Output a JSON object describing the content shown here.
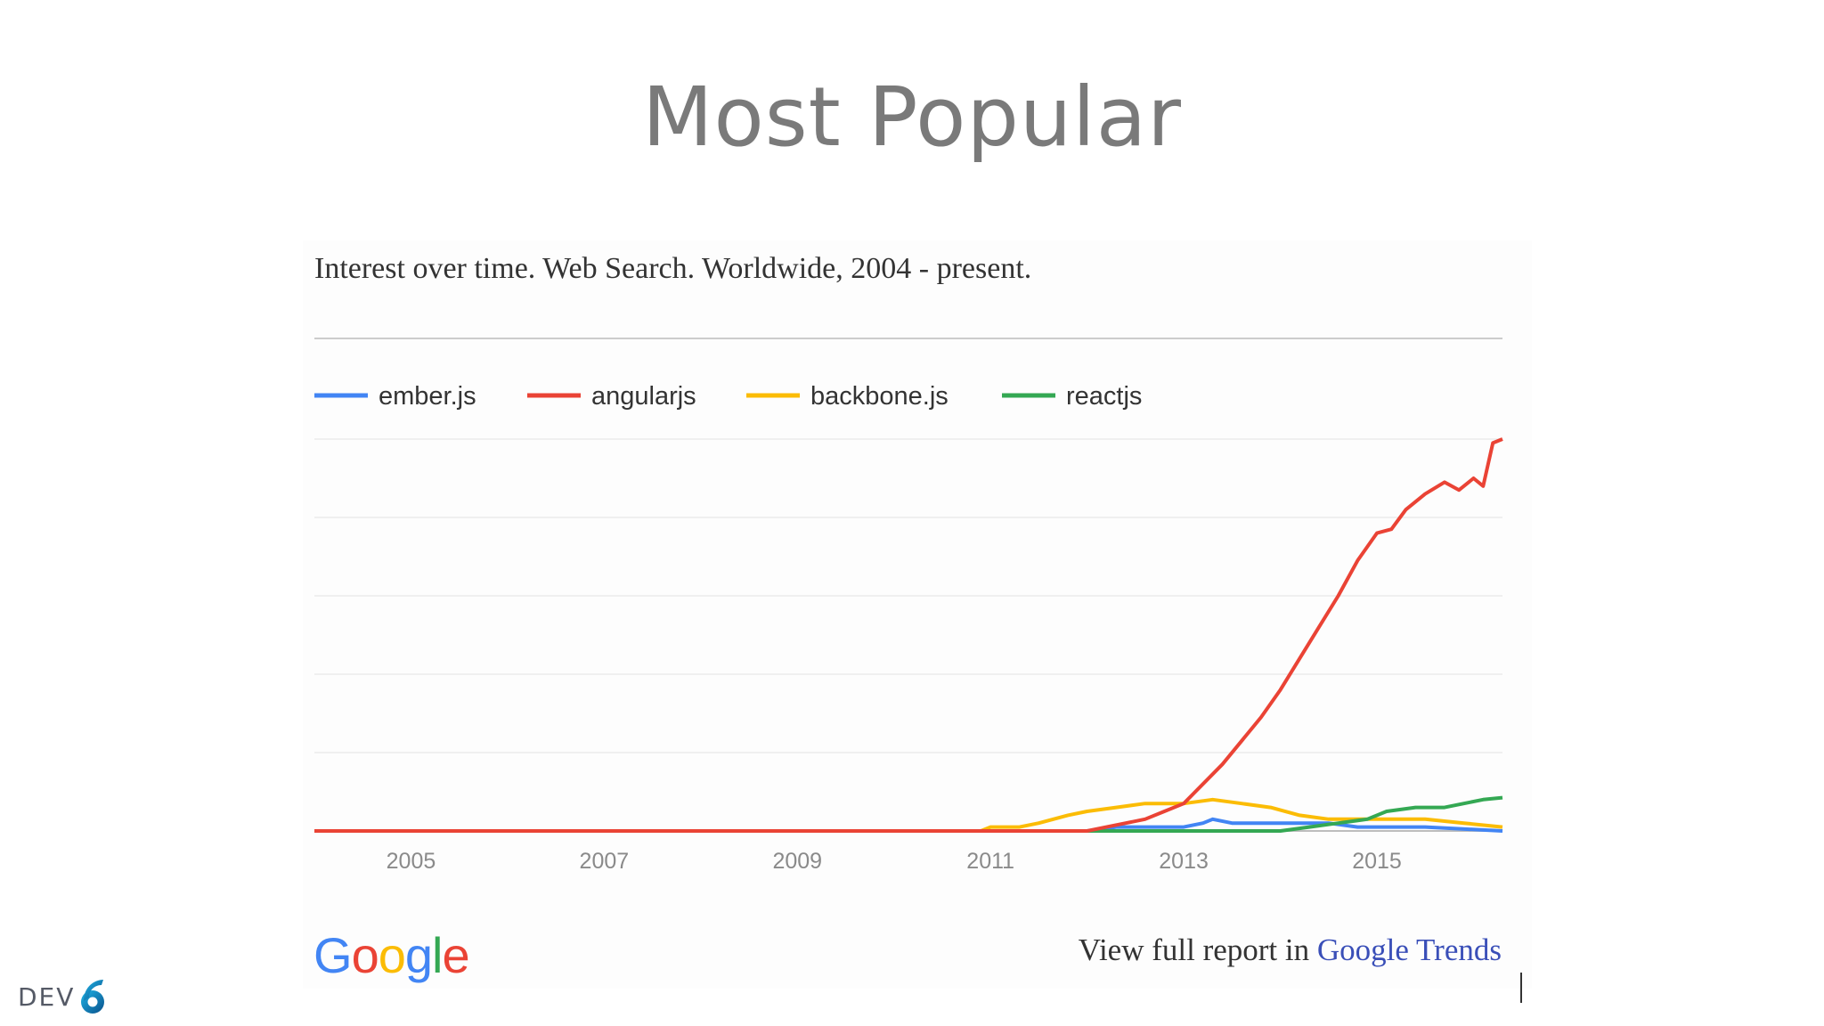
{
  "slide": {
    "title": "Most Popular",
    "footer_logo_text": "DEV",
    "footer_logo_mark": "6"
  },
  "chart_data": {
    "type": "line",
    "title": "Interest over time. Web Search. Worldwide, 2004 - present.",
    "xlabel": "",
    "ylabel": "",
    "x_ticks": [
      "2005",
      "2007",
      "2009",
      "2011",
      "2013",
      "2015"
    ],
    "xlim": [
      2004.0,
      2016.3
    ],
    "ylim": [
      0,
      100
    ],
    "grid": true,
    "legend_position": "top-left",
    "series": [
      {
        "name": "ember.js",
        "color": "#4285f4",
        "points": [
          [
            2004.0,
            0
          ],
          [
            2012.0,
            0
          ],
          [
            2012.3,
            1
          ],
          [
            2013.0,
            1
          ],
          [
            2013.2,
            2
          ],
          [
            2013.3,
            3
          ],
          [
            2013.5,
            2
          ],
          [
            2014.0,
            2
          ],
          [
            2014.5,
            2
          ],
          [
            2014.8,
            1
          ],
          [
            2015.5,
            1
          ],
          [
            2016.3,
            0
          ]
        ]
      },
      {
        "name": "angularjs",
        "color": "#ea4335",
        "points": [
          [
            2004.0,
            0
          ],
          [
            2012.0,
            0
          ],
          [
            2012.2,
            1
          ],
          [
            2012.4,
            2
          ],
          [
            2012.6,
            3
          ],
          [
            2012.8,
            5
          ],
          [
            2013.0,
            7
          ],
          [
            2013.2,
            12
          ],
          [
            2013.4,
            17
          ],
          [
            2013.6,
            23
          ],
          [
            2013.8,
            29
          ],
          [
            2014.0,
            36
          ],
          [
            2014.2,
            44
          ],
          [
            2014.4,
            52
          ],
          [
            2014.6,
            60
          ],
          [
            2014.8,
            69
          ],
          [
            2015.0,
            76
          ],
          [
            2015.15,
            77
          ],
          [
            2015.3,
            82
          ],
          [
            2015.5,
            86
          ],
          [
            2015.7,
            89
          ],
          [
            2015.85,
            87
          ],
          [
            2016.0,
            90
          ],
          [
            2016.1,
            88
          ],
          [
            2016.2,
            99
          ],
          [
            2016.3,
            100
          ]
        ]
      },
      {
        "name": "backbone.js",
        "color": "#fbbc05",
        "points": [
          [
            2004.0,
            0
          ],
          [
            2010.9,
            0
          ],
          [
            2011.0,
            1
          ],
          [
            2011.3,
            1
          ],
          [
            2011.5,
            2
          ],
          [
            2011.8,
            4
          ],
          [
            2012.0,
            5
          ],
          [
            2012.3,
            6
          ],
          [
            2012.6,
            7
          ],
          [
            2013.0,
            7
          ],
          [
            2013.3,
            8
          ],
          [
            2013.6,
            7
          ],
          [
            2013.9,
            6
          ],
          [
            2014.2,
            4
          ],
          [
            2014.5,
            3
          ],
          [
            2015.0,
            3
          ],
          [
            2015.5,
            3
          ],
          [
            2015.9,
            2
          ],
          [
            2016.3,
            1
          ]
        ]
      },
      {
        "name": "reactjs",
        "color": "#34a853",
        "points": [
          [
            2004.0,
            0
          ],
          [
            2014.0,
            0
          ],
          [
            2014.3,
            1
          ],
          [
            2014.6,
            2
          ],
          [
            2014.9,
            3
          ],
          [
            2015.1,
            5
          ],
          [
            2015.4,
            6
          ],
          [
            2015.7,
            6
          ],
          [
            2015.9,
            7
          ],
          [
            2016.1,
            8
          ],
          [
            2016.3,
            8.5
          ]
        ]
      }
    ]
  },
  "footer": {
    "google_letters": [
      {
        "ch": "G",
        "color": "#4285f4"
      },
      {
        "ch": "o",
        "color": "#ea4335"
      },
      {
        "ch": "o",
        "color": "#fbbc05"
      },
      {
        "ch": "g",
        "color": "#4285f4"
      },
      {
        "ch": "l",
        "color": "#34a853"
      },
      {
        "ch": "e",
        "color": "#ea4335"
      }
    ],
    "report_prefix": "View full report in ",
    "report_link": "Google Trends"
  }
}
